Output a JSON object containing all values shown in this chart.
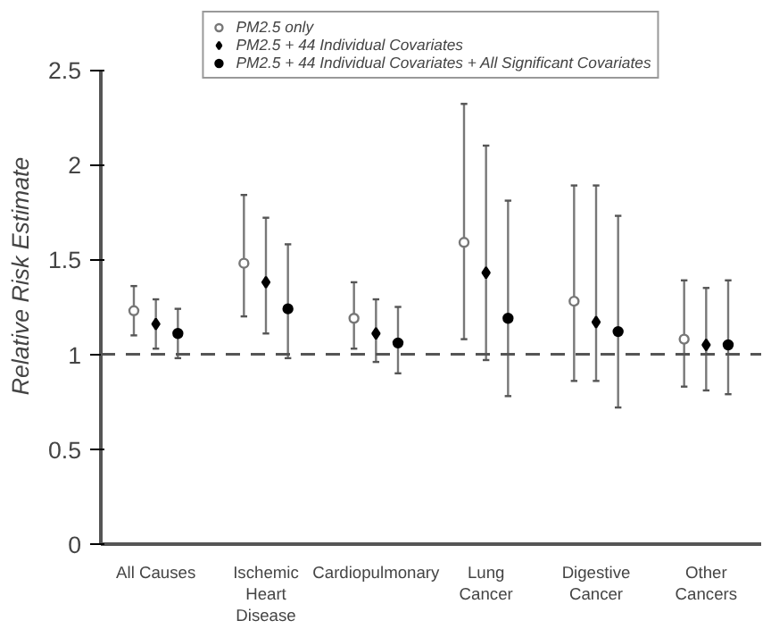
{
  "chart_data": {
    "type": "scatter",
    "ylabel": "Relative Risk Estimate",
    "categories": [
      "All Causes",
      "Ischemic\nHeart\nDisease",
      "Cardiopulmonary",
      "Lung\nCancer",
      "Digestive\nCancer",
      "Other\nCancers"
    ],
    "series": [
      {
        "name": "PM2.5 only",
        "color": "#777777",
        "marker": "circle",
        "values": [
          1.23,
          1.48,
          1.19,
          1.59,
          1.28,
          1.08
        ],
        "errors": [
          [
            1.1,
            1.36
          ],
          [
            1.2,
            1.84
          ],
          [
            1.03,
            1.38
          ],
          [
            1.08,
            2.32
          ],
          [
            0.86,
            1.89
          ],
          [
            0.83,
            1.39
          ]
        ]
      },
      {
        "name": "PM2.5 + 44 Individual Covariates",
        "color": "#000000",
        "marker": "diamond",
        "values": [
          1.16,
          1.38,
          1.11,
          1.43,
          1.17,
          1.05
        ],
        "errors": [
          [
            1.03,
            1.29
          ],
          [
            1.11,
            1.72
          ],
          [
            0.96,
            1.29
          ],
          [
            0.97,
            2.1
          ],
          [
            0.86,
            1.89
          ],
          [
            0.81,
            1.35
          ]
        ]
      },
      {
        "name": "PM2.5 + 44 Individual Covariates + All Significant Covariates",
        "color": "#000000",
        "marker": "circle",
        "values": [
          1.11,
          1.24,
          1.06,
          1.19,
          1.12,
          1.05
        ],
        "errors": [
          [
            0.98,
            1.24
          ],
          [
            0.98,
            1.58
          ],
          [
            0.9,
            1.25
          ],
          [
            0.78,
            1.81
          ],
          [
            0.72,
            1.73
          ],
          [
            0.79,
            1.39
          ]
        ]
      }
    ],
    "ylim": [
      0,
      2.5
    ],
    "yticks": [
      0,
      0.5,
      1,
      1.5,
      2,
      2.5
    ],
    "ref_lines": [
      {
        "axis": "y",
        "value": 1,
        "color": "#555555",
        "line_style": "dashed"
      }
    ],
    "grid": false,
    "legend": "top"
  }
}
